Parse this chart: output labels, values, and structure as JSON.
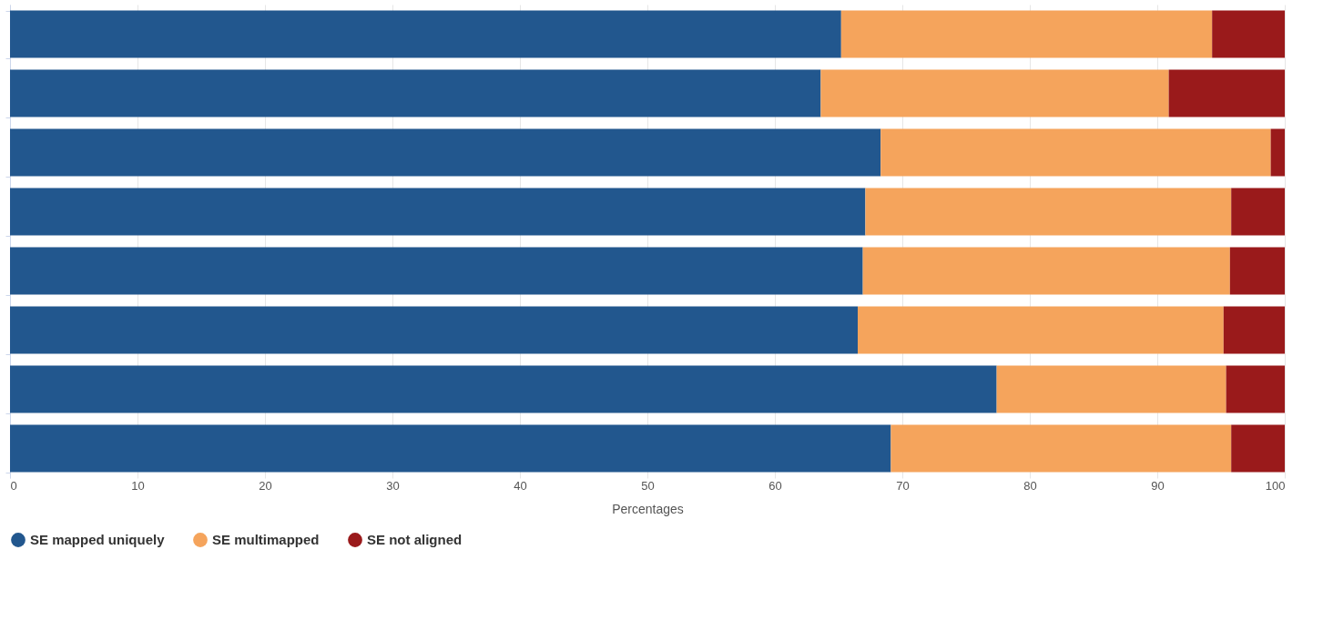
{
  "chart_data": {
    "type": "bar",
    "orientation": "horizontal",
    "stacked": true,
    "xlabel": "Percentages",
    "categories": [
      null,
      null,
      null,
      null,
      null,
      null,
      null,
      null
    ],
    "series": [
      {
        "name": "SE mapped uniquely",
        "color": "#22578e",
        "values": [
          65.2,
          63.6,
          68.3,
          67.1,
          66.9,
          66.5,
          77.4,
          69.1
        ]
      },
      {
        "name": "SE multimapped",
        "color": "#f5a45c",
        "values": [
          29.1,
          27.3,
          30.6,
          28.7,
          28.8,
          28.7,
          18.0,
          26.7
        ]
      },
      {
        "name": "SE not aligned",
        "color": "#9a1a1b",
        "values": [
          5.7,
          9.1,
          1.1,
          4.2,
          4.3,
          4.8,
          4.6,
          4.2
        ]
      }
    ],
    "xlim": [
      0,
      100
    ],
    "xticks": [
      0,
      10,
      20,
      30,
      40,
      50,
      60,
      70,
      80,
      90,
      100
    ],
    "grid": "x",
    "legend": "bottom left",
    "tick_labels": "x"
  }
}
